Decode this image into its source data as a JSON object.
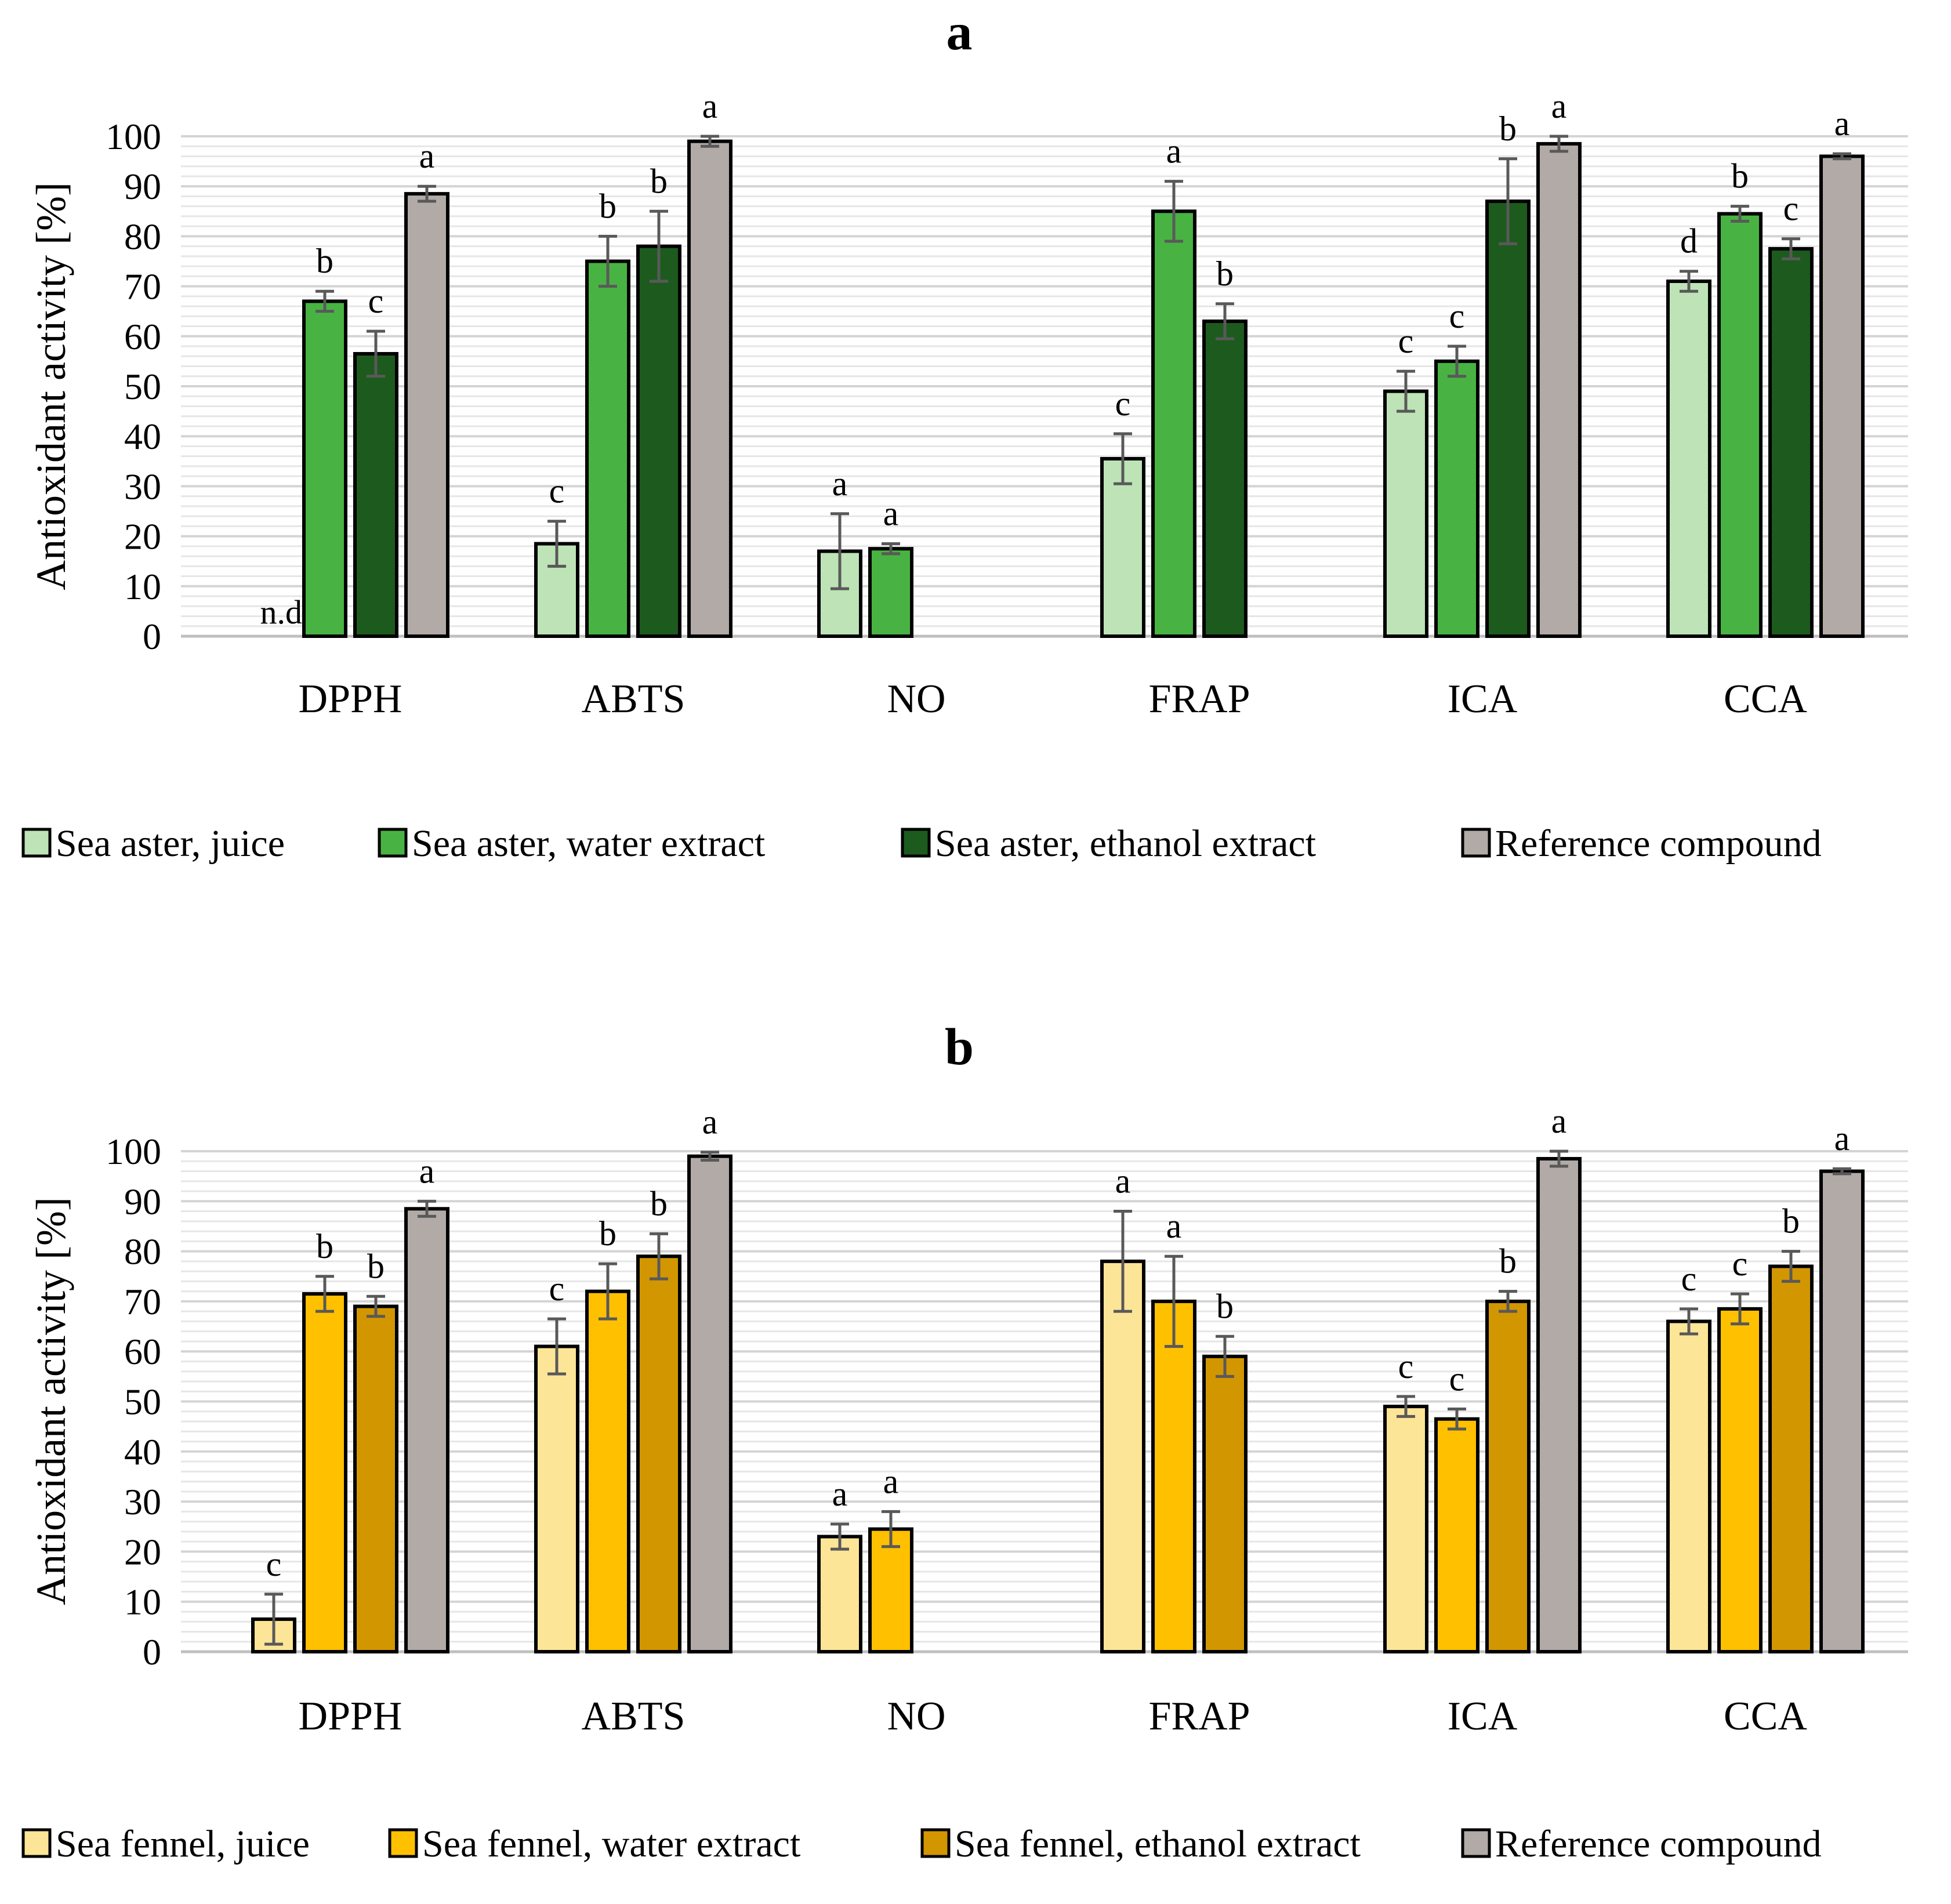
{
  "chart_data": [
    {
      "type": "bar",
      "title": "a",
      "ylabel": "Antioxidant activity [%]",
      "xlabel": "",
      "ylim": [
        0,
        100
      ],
      "yticks": [
        0,
        10,
        20,
        30,
        40,
        50,
        60,
        70,
        80,
        90,
        100
      ],
      "categories": [
        "DPPH",
        "ABTS",
        "NO",
        "FRAP",
        "ICA",
        "CCA"
      ],
      "series": [
        {
          "name": "Sea aster, juice",
          "color": "#bde3b7",
          "values": [
            null,
            18.5,
            17,
            35.5,
            49,
            71
          ],
          "errors": [
            null,
            4.5,
            7.5,
            5,
            4,
            2
          ],
          "letters": [
            "n.d.",
            "c",
            "a",
            "c",
            "c",
            "d"
          ]
        },
        {
          "name": "Sea aster, water extract",
          "color": "#48b342",
          "values": [
            67,
            75,
            17.5,
            85,
            55,
            84.5
          ],
          "errors": [
            2,
            5,
            1,
            6,
            3,
            1.5
          ],
          "letters": [
            "b",
            "b",
            "a",
            "a",
            "c",
            "b"
          ]
        },
        {
          "name": "Sea aster, ethanol extract",
          "color": "#1d5a1e",
          "values": [
            56.5,
            78,
            null,
            63,
            87,
            77.5
          ],
          "errors": [
            4.5,
            7,
            null,
            3.5,
            8.5,
            2
          ],
          "letters": [
            "c",
            "b",
            null,
            "b",
            "b",
            "c"
          ]
        },
        {
          "name": "Reference compound",
          "color": "#b1aaa7",
          "values": [
            88.5,
            99,
            null,
            null,
            98.5,
            96
          ],
          "errors": [
            1.5,
            1,
            null,
            null,
            1.5,
            0.5
          ],
          "letters": [
            "a",
            "a",
            null,
            null,
            "a",
            "a"
          ]
        }
      ]
    },
    {
      "type": "bar",
      "title": "b",
      "ylabel": "Antioxidant activity [%]",
      "xlabel": "",
      "ylim": [
        0,
        100
      ],
      "yticks": [
        0,
        10,
        20,
        30,
        40,
        50,
        60,
        70,
        80,
        90,
        100
      ],
      "categories": [
        "DPPH",
        "ABTS",
        "NO",
        "FRAP",
        "ICA",
        "CCA"
      ],
      "series": [
        {
          "name": "Sea fennel, juice",
          "color": "#fde597",
          "values": [
            6.5,
            61,
            23,
            78,
            49,
            66
          ],
          "errors": [
            5,
            5.5,
            2.5,
            10,
            2,
            2.5
          ],
          "letters": [
            "c",
            "c",
            "a",
            "a",
            "c",
            "c"
          ]
        },
        {
          "name": "Sea fennel, water extract",
          "color": "#ffc000",
          "values": [
            71.5,
            72,
            24.5,
            70,
            46.5,
            68.5
          ],
          "errors": [
            3.5,
            5.5,
            3.5,
            9,
            2,
            3
          ],
          "letters": [
            "b",
            "b",
            "a",
            "a",
            "c",
            "c"
          ]
        },
        {
          "name": "Sea fennel, ethanol extract",
          "color": "#d29600",
          "values": [
            69,
            79,
            null,
            59,
            70,
            77
          ],
          "errors": [
            2,
            4.5,
            null,
            4,
            2,
            3
          ],
          "letters": [
            "b",
            "b",
            null,
            "b",
            "b",
            "b"
          ]
        },
        {
          "name": "Reference compound",
          "color": "#b1aaa7",
          "values": [
            88.5,
            99,
            null,
            null,
            98.5,
            96
          ],
          "errors": [
            1.5,
            0.8,
            null,
            null,
            1.5,
            0.5
          ],
          "letters": [
            "a",
            "a",
            null,
            null,
            "a",
            "a"
          ]
        }
      ]
    }
  ]
}
